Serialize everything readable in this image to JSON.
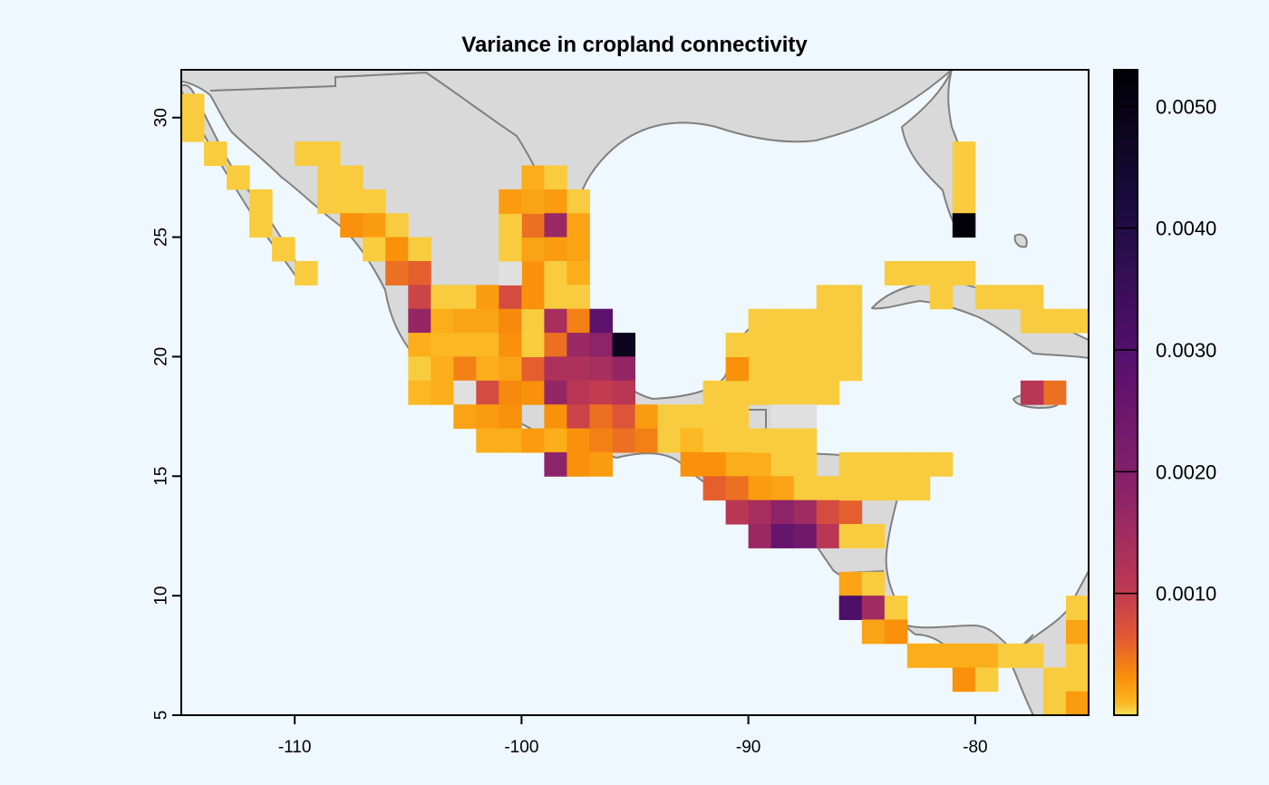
{
  "chart_data": {
    "type": "heatmap",
    "title": "Variance in cropland connectivity",
    "xlabel": "",
    "ylabel": "",
    "xlim": [
      -115,
      -75
    ],
    "ylim": [
      5,
      32
    ],
    "x_ticks": [
      -110,
      -100,
      -90,
      -80
    ],
    "y_ticks": [
      5,
      10,
      15,
      20,
      25,
      30
    ],
    "x_tick_labels": [
      "-110",
      "-100",
      "-90",
      "-80"
    ],
    "y_tick_labels": [
      "5",
      "10",
      "15",
      "20",
      "25",
      "30"
    ],
    "colorbar": {
      "range": [
        0,
        0.0053
      ],
      "ticks": [
        0.001,
        0.002,
        0.003,
        0.004,
        0.005
      ],
      "tick_labels": [
        "0.0010",
        "0.0020",
        "0.0030",
        "0.0040",
        "0.0050"
      ],
      "palette": [
        "#f6e05a",
        "#fbb61f",
        "#f98e09",
        "#e35933",
        "#bc3754",
        "#8a226a",
        "#57106e",
        "#1b0c41",
        "#000004"
      ]
    },
    "colors": {
      "background": "#f0f8ff",
      "land": "#d9d9d9",
      "border": "#808080",
      "nodata_cell": "#e0e0e0"
    },
    "grid": false,
    "legend": "right",
    "cell_size_deg": 1,
    "cells": [
      [
        -115,
        30,
        5e-05
      ],
      [
        -115,
        29,
        5e-05
      ],
      [
        -114,
        28,
        5e-05
      ],
      [
        -113,
        27,
        5e-05
      ],
      [
        -112,
        26,
        5e-05
      ],
      [
        -112,
        25,
        5e-05
      ],
      [
        -111,
        24,
        5e-05
      ],
      [
        -110,
        23,
        5e-05
      ],
      [
        -110,
        28,
        5e-05
      ],
      [
        -109,
        28,
        5e-05
      ],
      [
        -109,
        27,
        5e-05
      ],
      [
        -108,
        27,
        5e-05
      ],
      [
        -109,
        26,
        5e-05
      ],
      [
        -108,
        26,
        5e-05
      ],
      [
        -107,
        26,
        5e-05
      ],
      [
        -108,
        25,
        0.0003
      ],
      [
        -107,
        25,
        0.00025
      ],
      [
        -106,
        25,
        5e-05
      ],
      [
        -107,
        24,
        5e-05
      ],
      [
        -106,
        24,
        0.0003
      ],
      [
        -105,
        24,
        5e-05
      ],
      [
        -106,
        23,
        0.0005
      ],
      [
        -105,
        23,
        0.0006
      ],
      [
        -105,
        22,
        0.0009
      ],
      [
        -104,
        22,
        5e-05
      ],
      [
        -103,
        22,
        5e-05
      ],
      [
        -102,
        22,
        0.00025
      ],
      [
        -105,
        21,
        0.0017
      ],
      [
        -104,
        21,
        0.00015
      ],
      [
        -103,
        21,
        0.0002
      ],
      [
        -102,
        21,
        0.0002
      ],
      [
        -105,
        20,
        0.00015
      ],
      [
        -104,
        20,
        0.0001
      ],
      [
        -103,
        20,
        0.0001
      ],
      [
        -102,
        20,
        0.0001
      ],
      [
        -105,
        19,
        5e-05
      ],
      [
        -104,
        19,
        0.00015
      ],
      [
        -103,
        19,
        0.0004
      ],
      [
        -102,
        19,
        0.00015
      ],
      [
        -105,
        18,
        0.0001
      ],
      [
        -104,
        18,
        0.00015
      ],
      [
        -103,
        18,
        -1
      ],
      [
        -102,
        18,
        0.0008
      ],
      [
        -103,
        17,
        0.0002
      ],
      [
        -102,
        17,
        0.00025
      ],
      [
        -101,
        17,
        0.0003
      ],
      [
        -102,
        16,
        0.00015
      ],
      [
        -101,
        16,
        0.00015
      ],
      [
        -100,
        16,
        0.00025
      ],
      [
        -101,
        22,
        0.0008
      ],
      [
        -101,
        21,
        0.00035
      ],
      [
        -101,
        20,
        0.0003
      ],
      [
        -101,
        19,
        0.0002
      ],
      [
        -101,
        18,
        0.00035
      ],
      [
        -100,
        18,
        0.0003
      ],
      [
        -100,
        19,
        0.0006
      ],
      [
        -100,
        20,
        5e-05
      ],
      [
        -100,
        21,
        5e-05
      ],
      [
        -100,
        22,
        0.0003
      ],
      [
        -100,
        23,
        0.0003
      ],
      [
        -101,
        23,
        -1
      ],
      [
        -101,
        24,
        5e-05
      ],
      [
        -100,
        24,
        0.0002
      ],
      [
        -100,
        25,
        0.0005
      ],
      [
        -101,
        25,
        5e-05
      ],
      [
        -101,
        26,
        0.00025
      ],
      [
        -100,
        26,
        0.0002
      ],
      [
        -100,
        27,
        0.00015
      ],
      [
        -99,
        27,
        5e-05
      ],
      [
        -99,
        26,
        0.00025
      ],
      [
        -99,
        25,
        0.0016
      ],
      [
        -99,
        24,
        0.00025
      ],
      [
        -99,
        23,
        5e-05
      ],
      [
        -99,
        22,
        5e-05
      ],
      [
        -99,
        21,
        0.0014
      ],
      [
        -99,
        20,
        0.0005
      ],
      [
        -99,
        19,
        0.0013
      ],
      [
        -99,
        18,
        0.0017
      ],
      [
        -99,
        17,
        0.0003
      ],
      [
        -99,
        16,
        0.00015
      ],
      [
        -99,
        15,
        0.0018
      ],
      [
        -98,
        26,
        5e-05
      ],
      [
        -98,
        25,
        0.0002
      ],
      [
        -98,
        24,
        0.0002
      ],
      [
        -98,
        23,
        0.00015
      ],
      [
        -98,
        22,
        5e-05
      ],
      [
        -98,
        21,
        0.0004
      ],
      [
        -98,
        20,
        0.0016
      ],
      [
        -98,
        19,
        0.0013
      ],
      [
        -98,
        18,
        0.0011
      ],
      [
        -98,
        17,
        0.0009
      ],
      [
        -98,
        16,
        0.0003
      ],
      [
        -98,
        15,
        0.0003
      ],
      [
        -97,
        21,
        0.0028
      ],
      [
        -97,
        20,
        0.0018
      ],
      [
        -97,
        19,
        0.0014
      ],
      [
        -97,
        18,
        0.001
      ],
      [
        -97,
        17,
        0.0005
      ],
      [
        -97,
        16,
        0.0004
      ],
      [
        -97,
        15,
        0.00025
      ],
      [
        -96,
        20,
        0.0048
      ],
      [
        -96,
        19,
        0.0017
      ],
      [
        -96,
        18,
        0.0011
      ],
      [
        -96,
        17,
        0.0007
      ],
      [
        -96,
        16,
        0.0005
      ],
      [
        -95,
        17,
        0.00025
      ],
      [
        -95,
        16,
        0.0004
      ],
      [
        -94,
        17,
        5e-05
      ],
      [
        -94,
        16,
        5e-05
      ],
      [
        -93,
        17,
        5e-05
      ],
      [
        -93,
        16,
        0.0001
      ],
      [
        -92,
        17,
        5e-05
      ],
      [
        -92,
        16,
        5e-05
      ],
      [
        -91,
        17,
        5e-05
      ],
      [
        -91,
        16,
        5e-05
      ],
      [
        -93,
        15,
        0.0003
      ],
      [
        -92,
        15,
        0.0003
      ],
      [
        -91,
        15,
        0.00015
      ],
      [
        -90,
        15,
        0.00015
      ],
      [
        -89,
        15,
        5e-05
      ],
      [
        -88,
        15,
        5e-05
      ],
      [
        -92,
        14,
        0.0006
      ],
      [
        -91,
        14,
        0.0005
      ],
      [
        -90,
        14,
        0.00025
      ],
      [
        -89,
        14,
        0.0002
      ],
      [
        -88,
        14,
        5e-05
      ],
      [
        -87,
        14,
        5e-05
      ],
      [
        -91,
        13,
        0.0011
      ],
      [
        -90,
        13,
        0.0014
      ],
      [
        -89,
        13,
        0.0018
      ],
      [
        -88,
        13,
        0.0015
      ],
      [
        -87,
        13,
        0.0008
      ],
      [
        -86,
        13,
        0.0006
      ],
      [
        -90,
        12,
        0.0016
      ],
      [
        -89,
        12,
        0.0026
      ],
      [
        -88,
        12,
        0.0024
      ],
      [
        -87,
        12,
        0.0011
      ],
      [
        -86,
        14,
        5e-05
      ],
      [
        -85,
        14,
        5e-05
      ],
      [
        -84,
        14,
        5e-05
      ],
      [
        -83,
        14,
        5e-05
      ],
      [
        -86,
        15,
        5e-05
      ],
      [
        -85,
        15,
        5e-05
      ],
      [
        -84,
        15,
        5e-05
      ],
      [
        -83,
        15,
        5e-05
      ],
      [
        -82,
        15,
        5e-05
      ],
      [
        -86,
        12,
        5e-05
      ],
      [
        -85,
        12,
        5e-05
      ],
      [
        -90,
        19,
        5e-05
      ],
      [
        -89,
        19,
        5e-05
      ],
      [
        -88,
        19,
        5e-05
      ],
      [
        -87,
        19,
        5e-05
      ],
      [
        -89,
        20,
        5e-05
      ],
      [
        -88,
        20,
        5e-05
      ],
      [
        -87,
        20,
        5e-05
      ],
      [
        -90,
        20,
        5e-05
      ],
      [
        -88,
        21,
        5e-05
      ],
      [
        -89,
        21,
        5e-05
      ],
      [
        -87,
        21,
        5e-05
      ],
      [
        -86,
        21,
        5e-05
      ],
      [
        -86,
        20,
        5e-05
      ],
      [
        -86,
        19,
        5e-05
      ],
      [
        -87,
        18,
        5e-05
      ],
      [
        -88,
        18,
        5e-05
      ],
      [
        -89,
        18,
        5e-05
      ],
      [
        -90,
        18,
        5e-05
      ],
      [
        -91,
        18,
        5e-05
      ],
      [
        -92,
        18,
        5e-05
      ],
      [
        -89,
        17,
        -1
      ],
      [
        -88,
        17,
        -1
      ],
      [
        -86,
        22,
        5e-05
      ],
      [
        -87,
        22,
        5e-05
      ],
      [
        -89,
        16,
        5e-05
      ],
      [
        -88,
        16,
        5e-05
      ],
      [
        -90,
        16,
        5e-05
      ],
      [
        -91,
        19,
        0.0003
      ],
      [
        -90,
        21,
        5e-05
      ],
      [
        -91,
        20,
        5e-05
      ],
      [
        -86,
        10,
        0.0002
      ],
      [
        -85,
        10,
        5e-05
      ],
      [
        -86,
        9,
        0.0031
      ],
      [
        -85,
        9,
        0.0015
      ],
      [
        -84,
        9,
        5e-05
      ],
      [
        -85,
        8,
        0.0002
      ],
      [
        -84,
        8,
        0.0003
      ],
      [
        -83,
        7,
        0.00015
      ],
      [
        -82,
        7,
        0.00015
      ],
      [
        -81,
        7,
        0.00015
      ],
      [
        -80,
        7,
        0.00015
      ],
      [
        -81,
        6,
        0.0003
      ],
      [
        -80,
        6,
        5e-05
      ],
      [
        -79,
        7,
        5e-05
      ],
      [
        -78,
        7,
        5e-05
      ],
      [
        -77,
        6,
        5e-05
      ],
      [
        -76,
        7,
        5e-05
      ],
      [
        -76,
        6,
        5e-05
      ],
      [
        -77,
        5,
        5e-05
      ],
      [
        -76,
        5,
        0.00025
      ],
      [
        -75,
        5,
        0.0004
      ],
      [
        -75,
        7,
        0.0002
      ],
      [
        -75,
        8,
        0.0002
      ],
      [
        -76,
        8,
        0.0002
      ],
      [
        -75,
        6,
        0.0002
      ],
      [
        -75,
        9,
        5e-05
      ],
      [
        -76,
        9,
        5e-05
      ],
      [
        -75,
        10,
        5e-05
      ],
      [
        -81,
        28,
        5e-05
      ],
      [
        -81,
        27,
        5e-05
      ],
      [
        -81,
        26,
        5e-05
      ],
      [
        -81,
        25,
        0.0052
      ],
      [
        -84,
        23,
        5e-05
      ],
      [
        -83,
        23,
        5e-05
      ],
      [
        -82,
        23,
        5e-05
      ],
      [
        -81,
        23,
        5e-05
      ],
      [
        -80,
        22,
        5e-05
      ],
      [
        -79,
        22,
        5e-05
      ],
      [
        -78,
        22,
        5e-05
      ],
      [
        -77,
        21,
        5e-05
      ],
      [
        -76,
        21,
        5e-05
      ],
      [
        -75,
        20,
        5e-05
      ],
      [
        -82,
        22,
        5e-05
      ],
      [
        -78,
        21,
        5e-05
      ],
      [
        -77,
        18,
        0.0005
      ],
      [
        -78,
        18,
        0.0011
      ]
    ]
  }
}
